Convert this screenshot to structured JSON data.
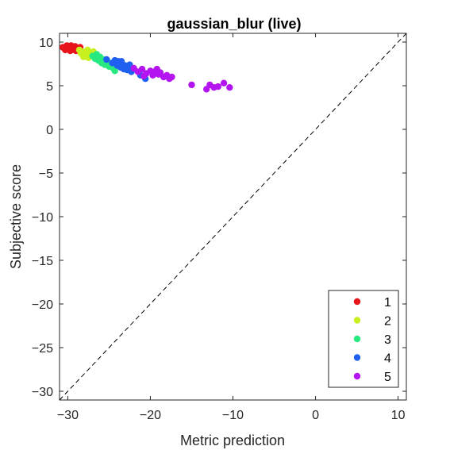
{
  "chart_data": {
    "type": "scatter",
    "title": "gaussian_blur (live)",
    "xlabel": "Metric prediction",
    "ylabel": "Subjective score",
    "xlim": [
      -31,
      11
    ],
    "ylim": [
      -31,
      11
    ],
    "xticks": [
      -30,
      -20,
      -10,
      0,
      10
    ],
    "yticks": [
      10,
      5,
      0,
      -5,
      -10,
      -15,
      -20,
      -25,
      -30
    ],
    "grid": false,
    "reference_line": {
      "style": "dashed",
      "from": [
        -31,
        -31
      ],
      "to": [
        11,
        11
      ]
    },
    "legend": {
      "placement": "bottom-right"
    },
    "series": [
      {
        "name": "1",
        "color": "#e8141c",
        "points": [
          [
            -30.6,
            9.4
          ],
          [
            -30.4,
            9.3
          ],
          [
            -30.2,
            9.5
          ],
          [
            -30.0,
            9.2
          ],
          [
            -29.8,
            9.4
          ],
          [
            -29.6,
            9.6
          ],
          [
            -29.5,
            9.1
          ],
          [
            -29.3,
            9.3
          ],
          [
            -29.1,
            9.5
          ],
          [
            -29.0,
            9.0
          ],
          [
            -28.9,
            9.3
          ],
          [
            -28.7,
            9.2
          ],
          [
            -29.7,
            9.0
          ],
          [
            -30.1,
            9.6
          ],
          [
            -28.5,
            9.4
          ],
          [
            -30.3,
            9.1
          ]
        ]
      },
      {
        "name": "2",
        "color": "#c8f01e",
        "points": [
          [
            -28.6,
            9.1
          ],
          [
            -28.3,
            8.9
          ],
          [
            -28.0,
            8.6
          ],
          [
            -27.8,
            8.9
          ],
          [
            -27.6,
            9.1
          ],
          [
            -27.4,
            8.6
          ],
          [
            -27.2,
            8.8
          ],
          [
            -27.0,
            8.5
          ],
          [
            -28.1,
            8.3
          ],
          [
            -27.5,
            8.2
          ],
          [
            -26.9,
            8.9
          ],
          [
            -27.7,
            8.4
          ],
          [
            -28.4,
            8.7
          ]
        ]
      },
      {
        "name": "3",
        "color": "#28e880",
        "points": [
          [
            -27.0,
            8.4
          ],
          [
            -26.7,
            8.1
          ],
          [
            -26.5,
            8.6
          ],
          [
            -26.3,
            7.9
          ],
          [
            -26.1,
            8.3
          ],
          [
            -25.9,
            7.6
          ],
          [
            -25.7,
            8.0
          ],
          [
            -25.5,
            7.4
          ],
          [
            -25.2,
            7.8
          ],
          [
            -25.0,
            7.2
          ],
          [
            -24.7,
            7.6
          ],
          [
            -24.5,
            7.0
          ],
          [
            -24.3,
            6.7
          ],
          [
            -26.0,
            7.9
          ],
          [
            -25.3,
            7.5
          ],
          [
            -24.9,
            7.3
          ]
        ]
      },
      {
        "name": "4",
        "color": "#2060f0",
        "points": [
          [
            -25.3,
            8.0
          ],
          [
            -24.6,
            7.6
          ],
          [
            -24.3,
            7.9
          ],
          [
            -24.0,
            7.3
          ],
          [
            -23.8,
            7.6
          ],
          [
            -23.6,
            7.1
          ],
          [
            -23.4,
            7.5
          ],
          [
            -23.2,
            6.9
          ],
          [
            -23.0,
            7.3
          ],
          [
            -22.8,
            6.8
          ],
          [
            -22.6,
            7.1
          ],
          [
            -22.3,
            6.6
          ],
          [
            -22.0,
            6.9
          ],
          [
            -23.9,
            7.8
          ],
          [
            -22.5,
            7.4
          ],
          [
            -21.2,
            6.2
          ],
          [
            -20.6,
            5.8
          ],
          [
            -23.5,
            7.8
          ]
        ]
      },
      {
        "name": "5",
        "color": "#b414f0",
        "points": [
          [
            -22.0,
            7.0
          ],
          [
            -21.5,
            6.6
          ],
          [
            -21.0,
            6.9
          ],
          [
            -20.5,
            6.4
          ],
          [
            -20.0,
            6.7
          ],
          [
            -19.7,
            6.2
          ],
          [
            -19.5,
            6.6
          ],
          [
            -19.2,
            6.9
          ],
          [
            -18.8,
            6.5
          ],
          [
            -18.4,
            6.0
          ],
          [
            -18.0,
            6.2
          ],
          [
            -17.7,
            5.8
          ],
          [
            -17.4,
            6.0
          ],
          [
            -15.0,
            5.1
          ],
          [
            -13.2,
            4.6
          ],
          [
            -12.8,
            5.1
          ],
          [
            -12.3,
            4.8
          ],
          [
            -11.8,
            4.9
          ],
          [
            -11.1,
            5.3
          ],
          [
            -10.4,
            4.8
          ],
          [
            -20.8,
            6.1
          ],
          [
            -19.0,
            6.3
          ]
        ]
      }
    ]
  }
}
